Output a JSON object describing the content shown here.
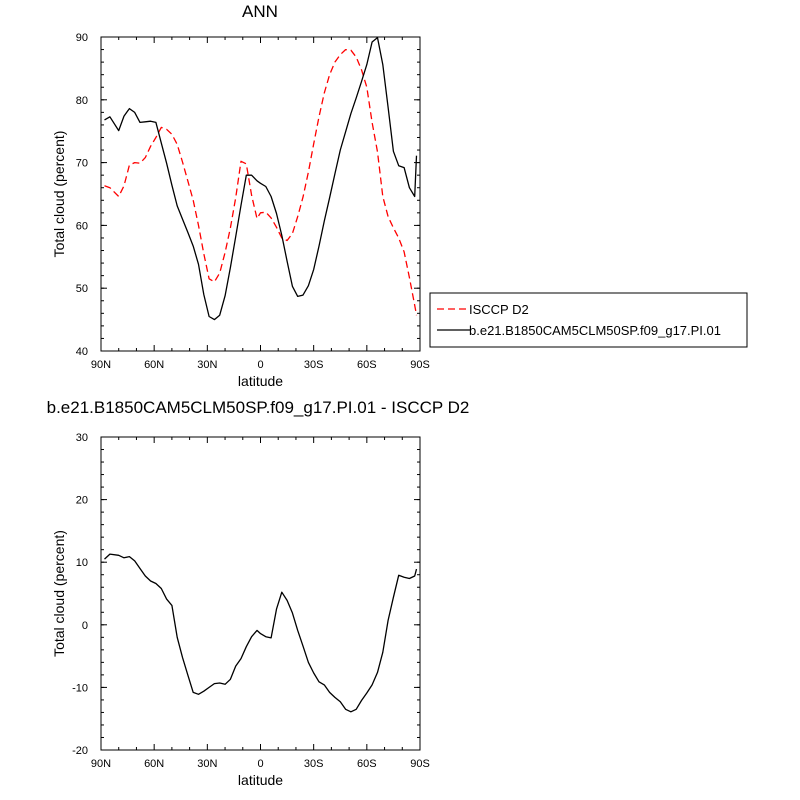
{
  "chart_data": [
    {
      "type": "line",
      "title": "ANN",
      "xlabel": "latitude",
      "ylabel": "Total cloud (percent)",
      "xlim": [
        90,
        -90
      ],
      "ylim": [
        40,
        90
      ],
      "x_unit": "degrees latitude (positive = N)",
      "xticks": [
        90,
        60,
        30,
        0,
        -30,
        -60,
        -90
      ],
      "xtick_labels": [
        "90N",
        "60N",
        "30N",
        "0",
        "30S",
        "60S",
        "90S"
      ],
      "yticks": [
        40,
        50,
        60,
        70,
        80,
        90
      ],
      "ytick_labels": [
        "40",
        "50",
        "60",
        "70",
        "80",
        "90"
      ],
      "legend_placement": "right",
      "series": [
        {
          "name": "ISCCP D2",
          "color": "#ff0000",
          "dash": "dashed",
          "x": [
            88,
            85,
            80,
            77,
            74,
            71,
            68,
            65,
            62,
            59,
            56,
            53,
            50,
            47,
            44,
            41,
            38,
            35,
            32,
            29,
            26,
            23,
            20,
            17,
            14,
            11,
            8,
            5,
            2,
            0,
            -3,
            -6,
            -9,
            -12,
            -15,
            -18,
            -21,
            -24,
            -27,
            -30,
            -33,
            -36,
            -39,
            -42,
            -45,
            -48,
            -51,
            -54,
            -57,
            -60,
            -63,
            -66,
            -69,
            -72,
            -75,
            -78,
            -81,
            -84,
            -87,
            -88
          ],
          "y": [
            66.3,
            66.0,
            64.6,
            66.3,
            69.6,
            70.0,
            69.9,
            70.8,
            72.6,
            74.0,
            75.6,
            75.3,
            74.5,
            72.9,
            70.1,
            67.1,
            64.0,
            60.0,
            55.5,
            51.5,
            51.0,
            52.4,
            55.7,
            59.6,
            64.4,
            70.2,
            69.8,
            64.8,
            61.1,
            62.0,
            62.1,
            61.2,
            59.7,
            58.0,
            57.6,
            58.7,
            61.4,
            64.5,
            68.5,
            73.0,
            77.3,
            81.1,
            84.0,
            86.0,
            87.2,
            88.0,
            87.9,
            86.8,
            84.8,
            82.0,
            76.4,
            71.7,
            64.6,
            61.4,
            59.6,
            58.0,
            55.8,
            51.7,
            47.3,
            45.7
          ]
        },
        {
          "name": "b.e21.B1850CAM5CLM50SP.f09_g17.PI.01",
          "color": "#000000",
          "dash": "solid",
          "x": [
            88,
            85,
            80,
            77,
            74,
            71,
            68,
            65,
            62,
            59,
            56,
            53,
            50,
            47,
            44,
            41,
            38,
            35,
            32,
            29,
            26,
            23,
            20,
            17,
            14,
            11,
            8,
            5,
            2,
            0,
            -3,
            -6,
            -9,
            -12,
            -15,
            -18,
            -21,
            -24,
            -27,
            -30,
            -33,
            -36,
            -39,
            -42,
            -45,
            -48,
            -51,
            -54,
            -57,
            -60,
            -63,
            -66,
            -69,
            -72,
            -75,
            -78,
            -81,
            -84,
            -87,
            -88
          ],
          "y": [
            76.8,
            77.3,
            75.1,
            77.4,
            78.6,
            78.0,
            76.4,
            76.5,
            76.6,
            76.4,
            73.1,
            69.9,
            66.4,
            63.1,
            61.0,
            58.9,
            56.7,
            53.8,
            49.0,
            45.5,
            45.0,
            45.7,
            48.8,
            53.3,
            58.2,
            63.2,
            68.0,
            68.0,
            67.1,
            66.7,
            66.2,
            64.6,
            61.9,
            58.4,
            54.3,
            50.3,
            48.7,
            48.9,
            50.4,
            53.0,
            56.7,
            60.7,
            64.4,
            68.2,
            72.0,
            74.9,
            77.8,
            80.3,
            82.9,
            85.6,
            89.2,
            89.9,
            85.6,
            78.8,
            71.8,
            69.5,
            69.2,
            66.0,
            64.6,
            71.1
          ]
        }
      ]
    },
    {
      "type": "line",
      "title": "b.e21.B1850CAM5CLM50SP.f09_g17.PI.01 - ISCCP D2",
      "xlabel": "latitude",
      "ylabel": "Total cloud (percent)",
      "xlim": [
        90,
        -90
      ],
      "ylim": [
        -20,
        30
      ],
      "x_unit": "degrees latitude (positive = N)",
      "xticks": [
        90,
        60,
        30,
        0,
        -30,
        -60,
        -90
      ],
      "xtick_labels": [
        "90N",
        "60N",
        "30N",
        "0",
        "30S",
        "60S",
        "90S"
      ],
      "yticks": [
        -20,
        -10,
        0,
        10,
        20,
        30
      ],
      "ytick_labels": [
        "-20",
        "-10",
        "0",
        "10",
        "20",
        "30"
      ],
      "series": [
        {
          "color": "#000000",
          "dash": "solid",
          "x": [
            88,
            85,
            80,
            77,
            74,
            71,
            68,
            65,
            62,
            59,
            56,
            53,
            50,
            47,
            44,
            41,
            38,
            35,
            32,
            29,
            26,
            23,
            20,
            17,
            14,
            11,
            8,
            5,
            2,
            0,
            -3,
            -6,
            -9,
            -12,
            -15,
            -18,
            -21,
            -24,
            -27,
            -30,
            -33,
            -36,
            -39,
            -42,
            -45,
            -48,
            -51,
            -54,
            -57,
            -60,
            -63,
            -66,
            -69,
            -72,
            -75,
            -78,
            -81,
            -84,
            -87,
            -88
          ],
          "y": [
            10.5,
            11.3,
            11.1,
            10.7,
            10.9,
            10.2,
            9.0,
            7.8,
            7.0,
            6.6,
            5.8,
            4.1,
            3.1,
            -2.0,
            -5.2,
            -8.0,
            -10.8,
            -11.1,
            -10.6,
            -10.0,
            -9.4,
            -9.3,
            -9.5,
            -8.7,
            -6.6,
            -5.4,
            -3.5,
            -1.9,
            -0.9,
            -1.4,
            -1.9,
            -2.1,
            2.5,
            5.2,
            3.9,
            1.9,
            -0.9,
            -3.4,
            -6.0,
            -7.7,
            -9.1,
            -9.6,
            -10.8,
            -11.6,
            -12.3,
            -13.5,
            -13.9,
            -13.5,
            -12.1,
            -10.9,
            -9.6,
            -7.6,
            -4.4,
            0.7,
            4.4,
            7.9,
            7.6,
            7.4,
            7.8,
            8.9
          ]
        }
      ]
    }
  ]
}
